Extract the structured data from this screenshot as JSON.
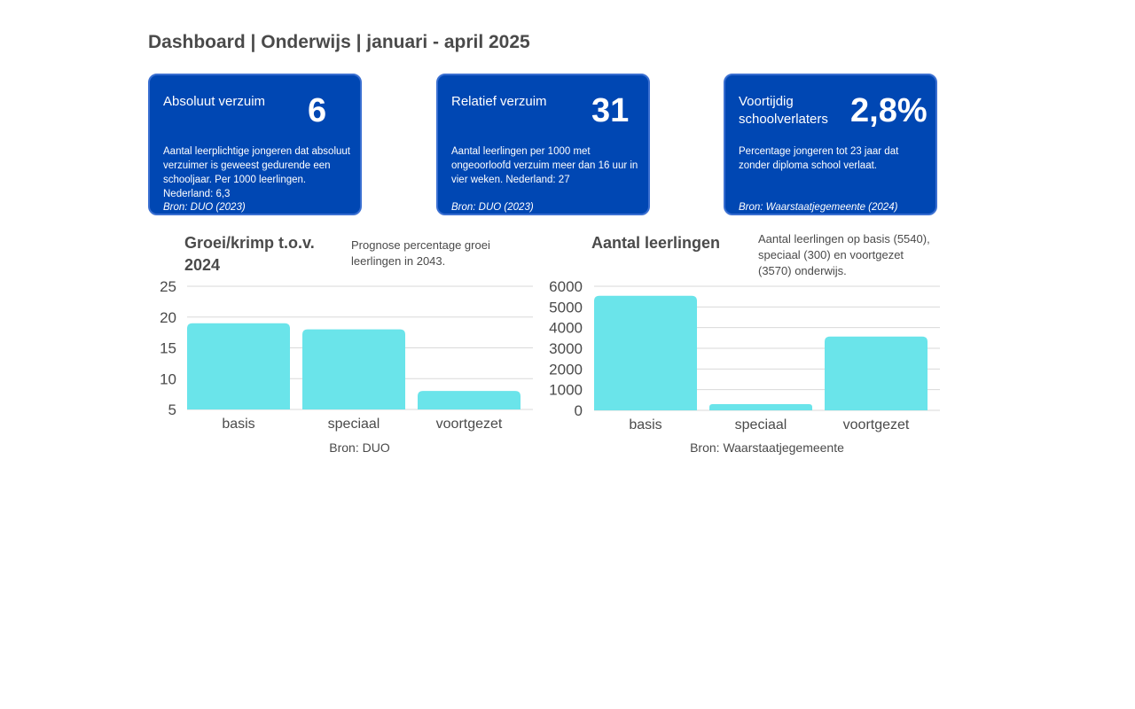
{
  "header": {
    "title": "Dashboard | Onderwijs | januari - april 2025"
  },
  "kpis": [
    {
      "label": "Absoluut verzuim",
      "value": "6",
      "description": "Aantal leerplichtige jongeren dat absoluut verzuimer is geweest gedurende een schooljaar. Per 1000 leerlingen. Nederland: 6,3",
      "source": "Bron: DUO (2023)"
    },
    {
      "label": "Relatief verzuim",
      "value": "31",
      "description": "Aantal leerlingen per 1000 met ongeoorloofd verzuim meer dan 16 uur in vier weken. Nederland: 27",
      "source": "Bron: DUO (2023)"
    },
    {
      "label": "Voortijdig schoolverlaters",
      "value": "2,8%",
      "description": "Percentage jongeren tot 23 jaar dat zonder diploma school verlaat.",
      "source": "Bron: Waarstaatjegemeente (2024)"
    }
  ],
  "colors": {
    "kpi_bg": "#0047b3",
    "bar": "#6ae4ea",
    "grid": "#d9d9d9",
    "text": "#4a4a4a"
  },
  "chart_data": [
    {
      "type": "bar",
      "title": "Groei/krimp t.o.v. 2024",
      "subtitle": "Prognose percentage groei leerlingen in 2043.",
      "source": "Bron: DUO",
      "categories": [
        "basis",
        "speciaal",
        "voortgezet"
      ],
      "values": [
        19,
        18,
        8
      ],
      "ylim": [
        5,
        25
      ],
      "yticks": [
        5,
        10,
        15,
        20,
        25
      ],
      "grid": true
    },
    {
      "type": "bar",
      "title": "Aantal leerlingen",
      "subtitle": "Aantal leerlingen op basis (5540), speciaal (300) en voortgezet (3570) onderwijs.",
      "source": "Bron: Waarstaatjegemeente",
      "categories": [
        "basis",
        "speciaal",
        "voortgezet"
      ],
      "values": [
        5540,
        300,
        3570
      ],
      "ylim": [
        0,
        6000
      ],
      "yticks": [
        0,
        1000,
        2000,
        3000,
        4000,
        5000,
        6000
      ],
      "grid": true
    }
  ]
}
